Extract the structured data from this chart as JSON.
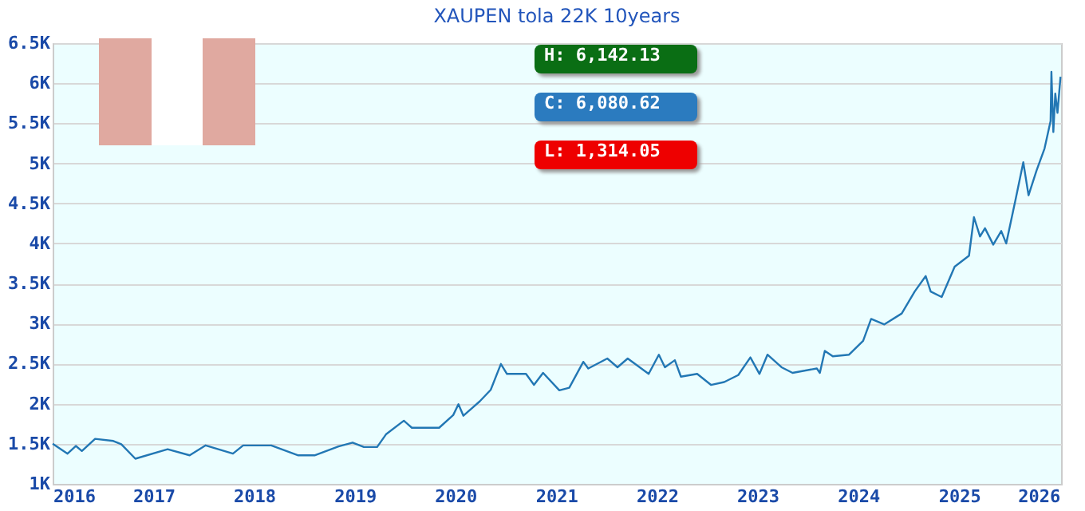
{
  "chart_data": {
    "type": "line",
    "title": "XAUPEN tola 22K 10years",
    "x": [
      "2016-01-01",
      "2016-02-24",
      "2016-03-25",
      "2016-04-16",
      "2016-06-03",
      "2016-08-08",
      "2016-09-06",
      "2016-10-27",
      "2017-02-21",
      "2017-05-12",
      "2017-07-09",
      "2017-10-16",
      "2017-11-22",
      "2018-03-04",
      "2018-06-10",
      "2018-08-08",
      "2018-11-03",
      "2018-12-24",
      "2019-02-03",
      "2019-03-23",
      "2019-04-24",
      "2019-06-28",
      "2019-07-27",
      "2019-11-03",
      "2019-12-24",
      "2020-01-12",
      "2020-01-30",
      "2020-03-29",
      "2020-05-08",
      "2020-06-14",
      "2020-07-06",
      "2020-09-13",
      "2020-10-12",
      "2020-11-14",
      "2021-01-12",
      "2021-02-17",
      "2021-04-09",
      "2021-04-27",
      "2021-07-05",
      "2021-08-11",
      "2021-09-17",
      "2021-12-02",
      "2022-01-08",
      "2022-01-30",
      "2022-03-07",
      "2022-03-29",
      "2022-05-27",
      "2022-07-16",
      "2022-09-02",
      "2022-10-23",
      "2022-12-06",
      "2023-01-08",
      "2023-02-06",
      "2023-03-29",
      "2023-05-08",
      "2023-08-04",
      "2023-08-15",
      "2023-09-02",
      "2023-10-01",
      "2023-11-29",
      "2024-01-19",
      "2024-02-17",
      "2024-04-05",
      "2024-06-07",
      "2024-07-24",
      "2024-09-02",
      "2024-09-20",
      "2024-10-30",
      "2024-12-16",
      "2025-02-06",
      "2025-02-24",
      "2025-03-18",
      "2025-04-05",
      "2025-05-05",
      "2025-06-03",
      "2025-06-21",
      "2025-07-24",
      "2025-08-22",
      "2025-09-10",
      "2025-10-09",
      "2025-11-07",
      "2025-11-29",
      "2025-12-02",
      "2025-12-09",
      "2025-12-16",
      "2025-12-24",
      "2026-01-04"
    ],
    "series": [
      {
        "color": "#2277b4",
        "values": [
          1500,
          1377,
          1473,
          1410,
          1562,
          1535,
          1494,
          1314,
          1432,
          1356,
          1480,
          1377,
          1480,
          1480,
          1356,
          1356,
          1467,
          1515,
          1460,
          1460,
          1617,
          1788,
          1700,
          1700,
          1858,
          1994,
          1850,
          2029,
          2173,
          2496,
          2372,
          2372,
          2235,
          2385,
          2167,
          2200,
          2523,
          2440,
          2564,
          2455,
          2564,
          2372,
          2612,
          2455,
          2543,
          2338,
          2372,
          2235,
          2270,
          2358,
          2578,
          2372,
          2612,
          2455,
          2385,
          2440,
          2385,
          2660,
          2592,
          2612,
          2784,
          3058,
          2990,
          3126,
          3400,
          3593,
          3400,
          3332,
          3710,
          3847,
          4328,
          4087,
          4190,
          3985,
          4155,
          4000,
          4533,
          5013,
          4601,
          4910,
          5184,
          5528,
          6142,
          5390,
          5870,
          5630,
          6081
        ]
      }
    ],
    "xlim": [
      "2016-01-01",
      "2026-01-06"
    ],
    "xticks": [
      {
        "value": "2016-01-01",
        "label": "2016"
      },
      {
        "value": "2017-01-01",
        "label": "2017"
      },
      {
        "value": "2018-01-01",
        "label": "2018"
      },
      {
        "value": "2019-01-01",
        "label": "2019"
      },
      {
        "value": "2020-01-01",
        "label": "2020"
      },
      {
        "value": "2021-01-01",
        "label": "2021"
      },
      {
        "value": "2022-01-01",
        "label": "2022"
      },
      {
        "value": "2023-01-01",
        "label": "2023"
      },
      {
        "value": "2024-01-01",
        "label": "2024"
      },
      {
        "value": "2025-01-01",
        "label": "2025"
      },
      {
        "value": "2026-01-01",
        "label": "2026"
      }
    ],
    "ylim": [
      1000,
      6500
    ],
    "yticks": [
      {
        "value": 1000,
        "label": "1K"
      },
      {
        "value": 1500,
        "label": "1.5K"
      },
      {
        "value": 2000,
        "label": "2K"
      },
      {
        "value": 2500,
        "label": "2.5K"
      },
      {
        "value": 3000,
        "label": "3K"
      },
      {
        "value": 3500,
        "label": "3.5K"
      },
      {
        "value": 4000,
        "label": "4K"
      },
      {
        "value": 4500,
        "label": "4.5K"
      },
      {
        "value": 5000,
        "label": "5K"
      },
      {
        "value": 5500,
        "label": "5.5K"
      },
      {
        "value": 6000,
        "label": "6K"
      },
      {
        "value": 6500,
        "label": "6.5K"
      }
    ],
    "grid": "y",
    "marker": "none",
    "line_style": "solid",
    "legend": false,
    "annotations": [
      "H: 6,142.13",
      "C: 6,080.62",
      "L: 1,314.05"
    ]
  }
}
